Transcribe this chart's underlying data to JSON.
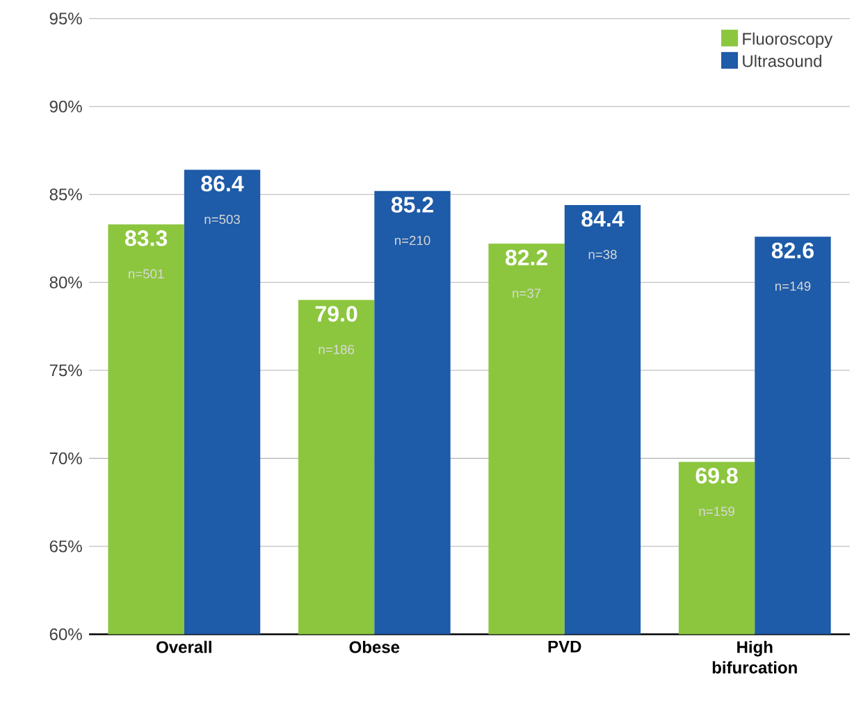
{
  "chart_data": {
    "type": "bar",
    "categories": [
      "Overall",
      "Obese",
      "PVD",
      "High bifurcation"
    ],
    "series": [
      {
        "name": "Fluoroscopy",
        "color": "#8cc63e",
        "values": [
          83.3,
          79.0,
          82.2,
          69.8
        ],
        "value_labels": [
          "83.3",
          "79.0",
          "82.2",
          "69.8"
        ]
      },
      {
        "name": "Ultrasound",
        "color": "#1e5ba8",
        "values": [
          86.4,
          85.2,
          84.4,
          82.6
        ],
        "value_labels": [
          "86.4",
          "85.2",
          "84.4",
          "82.6"
        ]
      }
    ],
    "ylim": [
      60,
      95
    ],
    "yticks": [
      {
        "value": 60,
        "label": "60%"
      },
      {
        "value": 65,
        "label": "65%"
      },
      {
        "value": 70,
        "label": "70%"
      },
      {
        "value": 75,
        "label": "75%"
      },
      {
        "value": 80,
        "label": "80%"
      },
      {
        "value": 85,
        "label": "85%"
      },
      {
        "value": 90,
        "label": "90%"
      },
      {
        "value": 95,
        "label": "95%"
      }
    ],
    "grid": "y",
    "legend": "top right",
    "annotations": [
      "n=501",
      "n=503",
      "n=186",
      "n=210",
      "n=37",
      "n=38",
      "n=159",
      "n=149"
    ]
  }
}
